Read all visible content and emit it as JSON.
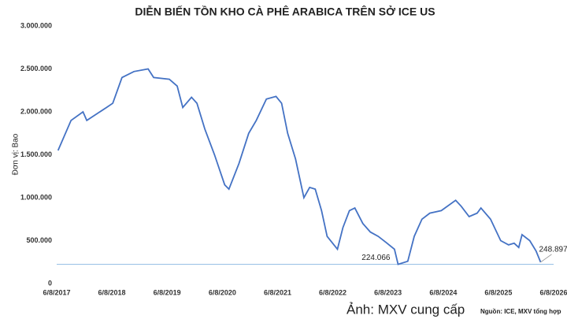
{
  "chart_data": {
    "type": "line",
    "title": "DIỄN BIẾN TỒN KHO CÀ PHÊ ARABICA TRÊN SỞ ICE US",
    "y_label": "Đơn vị: Bao",
    "photo_credit": "Ảnh: MXV cung cấp",
    "source": "Nguồn: ICE, MXV tổng hợp",
    "x": [
      "2017-08-15",
      "2017-11-09",
      "2018-01-27",
      "2018-02-21",
      "2018-07-01",
      "2018-08-12",
      "2018-10-12",
      "2018-12-30",
      "2019-04-03",
      "2019-05-09",
      "2019-08-21",
      "2019-10-12",
      "2019-11-18",
      "2020-01-15",
      "2020-02-20",
      "2020-04-12",
      "2020-06-15",
      "2020-08-21",
      "2020-09-18",
      "2020-11-24",
      "2021-01-27",
      "2021-03-18",
      "2021-05-24",
      "2021-07-27",
      "2021-09-02",
      "2021-10-12",
      "2021-12-03",
      "2022-01-27",
      "2022-03-06",
      "2022-04-12",
      "2022-05-24",
      "2022-06-30",
      "2022-09-06",
      "2022-10-12",
      "2022-11-24",
      "2022-12-30",
      "2023-02-21",
      "2023-04-12",
      "2023-06-03",
      "2023-07-24",
      "2023-09-18",
      "2023-10-12",
      "2023-12-15",
      "2024-01-27",
      "2024-03-18",
      "2024-05-09",
      "2024-07-24",
      "2024-10-27",
      "2024-12-03",
      "2025-01-24",
      "2025-03-18",
      "2025-04-12",
      "2025-06-15",
      "2025-08-21",
      "2025-10-12",
      "2025-11-18",
      "2025-12-18",
      "2026-01-09",
      "2026-03-01",
      "2026-04-12",
      "2026-05-12"
    ],
    "series": [
      {
        "name": "Tồn kho",
        "color": "#4472c4",
        "values": [
          1550000,
          1900000,
          2000000,
          1900000,
          2050000,
          2100000,
          2400000,
          2470000,
          2500000,
          2400000,
          2380000,
          2300000,
          2050000,
          2170000,
          2100000,
          1800000,
          1500000,
          1150000,
          1100000,
          1400000,
          1750000,
          1900000,
          2150000,
          2180000,
          2100000,
          1750000,
          1450000,
          1000000,
          1120000,
          1100000,
          850000,
          550000,
          400000,
          650000,
          850000,
          880000,
          700000,
          600000,
          550000,
          480000,
          400000,
          224066,
          260000,
          550000,
          750000,
          820000,
          850000,
          970000,
          900000,
          780000,
          820000,
          880000,
          750000,
          500000,
          450000,
          470000,
          420000,
          570000,
          500000,
          380000,
          248897
        ]
      }
    ],
    "annotations": [
      {
        "x": "2023-10-12",
        "value": 224066,
        "label": "224.066"
      },
      {
        "x": "2026-05-12",
        "value": 248897,
        "label": "248.897"
      }
    ],
    "reference_line_color": "#9dc3e6",
    "xlim": [
      "2017-08-06",
      "2026-08-06"
    ],
    "xticks": [
      {
        "value": "2017-08-06",
        "label": "6/8/2017"
      },
      {
        "value": "2018-08-06",
        "label": "6/8/2018"
      },
      {
        "value": "2019-08-06",
        "label": "6/8/2019"
      },
      {
        "value": "2020-08-06",
        "label": "6/8/2020"
      },
      {
        "value": "2021-08-06",
        "label": "6/8/2021"
      },
      {
        "value": "2022-08-06",
        "label": "6/8/2022"
      },
      {
        "value": "2023-08-06",
        "label": "6/8/2023"
      },
      {
        "value": "2024-08-06",
        "label": "6/8/2024"
      },
      {
        "value": "2025-08-06",
        "label": "6/8/2025"
      },
      {
        "value": "2026-08-06",
        "label": "6/8/2026"
      }
    ],
    "ylim": [
      0,
      3000000
    ],
    "yticks": [
      0,
      {
        "value": 500000,
        "label": "500.000"
      },
      {
        "value": 1000000,
        "label": "1.000.000"
      },
      {
        "value": 1500000,
        "label": "1.500.000"
      },
      {
        "value": 2000000,
        "label": "2.000.000"
      },
      {
        "value": 2500000,
        "label": "2.500.000"
      },
      {
        "value": 3000000,
        "label": "3.000.000"
      }
    ],
    "grid": false
  }
}
